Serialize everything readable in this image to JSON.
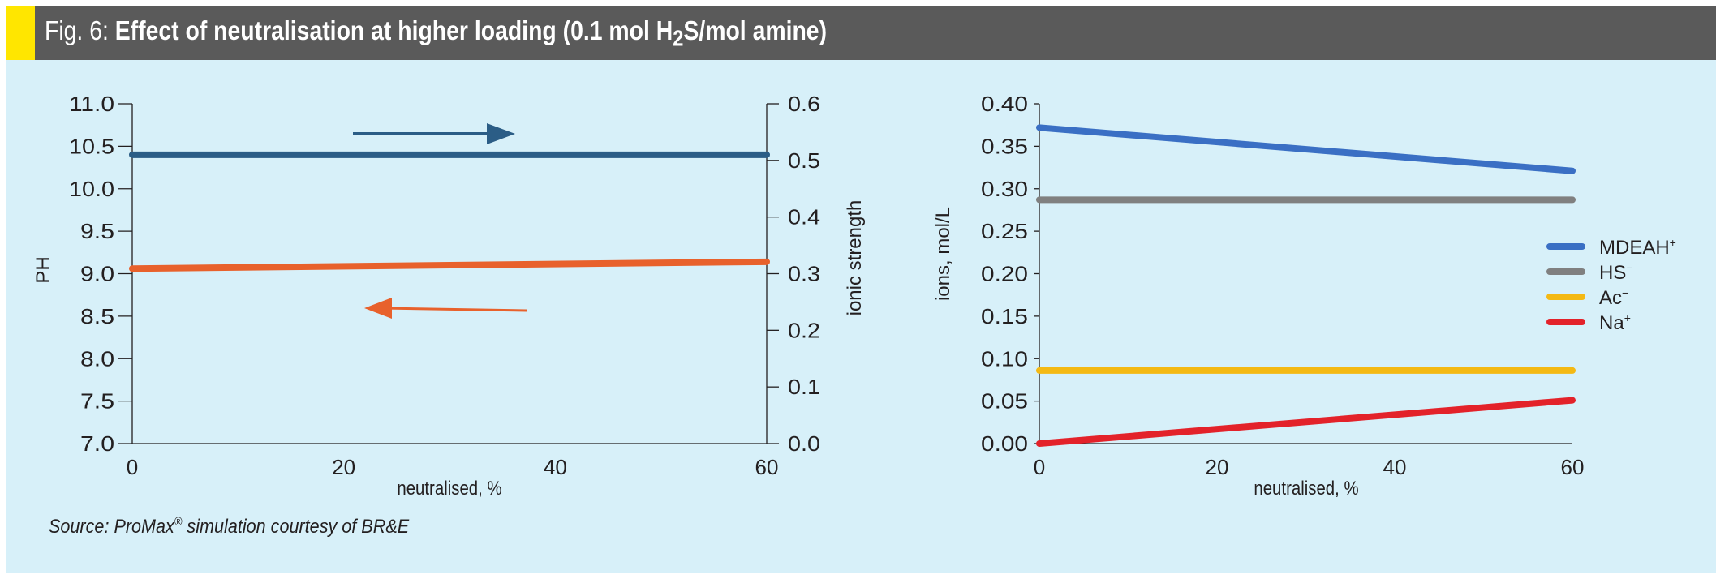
{
  "header": {
    "fig_label": "Fig. 6:",
    "title_main": "Effect of neutralisation at higher loading (0.1 mol H",
    "title_sub": "2",
    "title_end": "S/mol amine)"
  },
  "source": {
    "text": "Source: ProMax",
    "reg": "®",
    "text_end": " simulation courtesy of BR&E"
  },
  "colors": {
    "header": "#5a5a5a",
    "accent": "#ffe600",
    "background": "#d7f0f9"
  },
  "chart_data": [
    {
      "type": "line",
      "xlabel": "neutralised, %",
      "ylabel": "PH",
      "y2label": "ionic strength",
      "x": [
        0,
        60
      ],
      "xticks": [
        "0",
        "20",
        "40",
        "60"
      ],
      "xlim": [
        0,
        60
      ],
      "ylim": [
        7.0,
        11.0
      ],
      "yticks": [
        "7.0",
        "7.5",
        "8.0",
        "8.5",
        "9.0",
        "9.5",
        "10.0",
        "10.5",
        "11.0"
      ],
      "y2lim": [
        0.0,
        0.6
      ],
      "y2ticks": [
        "0.0",
        "0.1",
        "0.2",
        "0.3",
        "0.4",
        "0.5",
        "0.6"
      ],
      "series": [
        {
          "name": "ionic strength",
          "axis": "right",
          "color": "#2b5d86",
          "values": [
            0.51,
            0.51
          ]
        },
        {
          "name": "pH",
          "axis": "left",
          "color": "#e8612c",
          "values": [
            9.06,
            9.14
          ]
        }
      ]
    },
    {
      "type": "line",
      "xlabel": "neutralised, %",
      "ylabel": "ions, mol/L",
      "x": [
        0,
        60
      ],
      "xticks": [
        "0",
        "20",
        "40",
        "60"
      ],
      "xlim": [
        0,
        60
      ],
      "ylim": [
        0.0,
        0.4
      ],
      "yticks": [
        "0.00",
        "0.05",
        "0.10",
        "0.15",
        "0.20",
        "0.25",
        "0.30",
        "0.35",
        "0.40"
      ],
      "legend_position": "right",
      "series": [
        {
          "name": "MDEAH",
          "sup": "+",
          "color": "#3a6fc4",
          "values": [
            0.372,
            0.321
          ]
        },
        {
          "name": "HS",
          "sup": "−",
          "color": "#808080",
          "values": [
            0.287,
            0.287
          ]
        },
        {
          "name": "Ac",
          "sup": "−",
          "color": "#f4b914",
          "values": [
            0.086,
            0.086
          ]
        },
        {
          "name": "Na",
          "sup": "+",
          "color": "#e3222a",
          "values": [
            0.0,
            0.051
          ]
        }
      ]
    }
  ]
}
